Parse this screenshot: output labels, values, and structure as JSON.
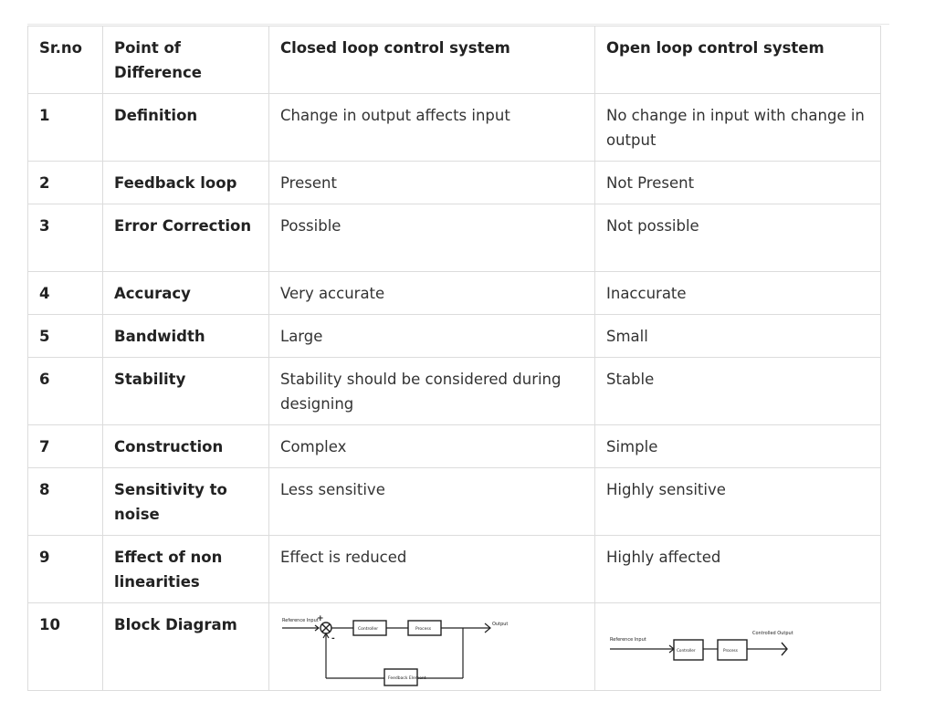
{
  "table": {
    "headers": [
      "Sr.no",
      "Point of Difference",
      "Closed loop control system",
      "Open loop control system"
    ],
    "rows": [
      {
        "no": "1",
        "point": "Definition",
        "closed": "Change in output affects input",
        "open": "No change in input with change in output"
      },
      {
        "no": "2",
        "point": "Feedback loop",
        "closed": "Present",
        "open": "Not Present"
      },
      {
        "no": "3",
        "point": "Error Correction",
        "closed": "Possible",
        "open": "Not possible"
      },
      {
        "no": "4",
        "point": "Accuracy",
        "closed": "Very accurate",
        "open": "Inaccurate"
      },
      {
        "no": "5",
        "point": "Bandwidth",
        "closed": "Large",
        "open": "Small"
      },
      {
        "no": "6",
        "point": "Stability",
        "closed": "Stability should be considered during designing",
        "open": "Stable"
      },
      {
        "no": "7",
        "point": "Construction",
        "closed": "Complex",
        "open": "Simple"
      },
      {
        "no": "8",
        "point": "Sensitivity to noise",
        "closed": "Less sensitive",
        "open": "Highly sensitive"
      },
      {
        "no": "9",
        "point": "Effect of non linearities",
        "closed": "Effect is reduced",
        "open": "Highly affected"
      },
      {
        "no": "10",
        "point": "Block Diagram"
      }
    ]
  },
  "closed_diagram": {
    "input": "Reference Input",
    "plus": "+",
    "minus": "-",
    "controller": "Controller",
    "process": "Process",
    "output": "Output",
    "feedback": "Feedback Element"
  },
  "open_diagram": {
    "input": "Reference Input",
    "controller": "Controller",
    "process": "Process",
    "output": "Controlled Output"
  }
}
